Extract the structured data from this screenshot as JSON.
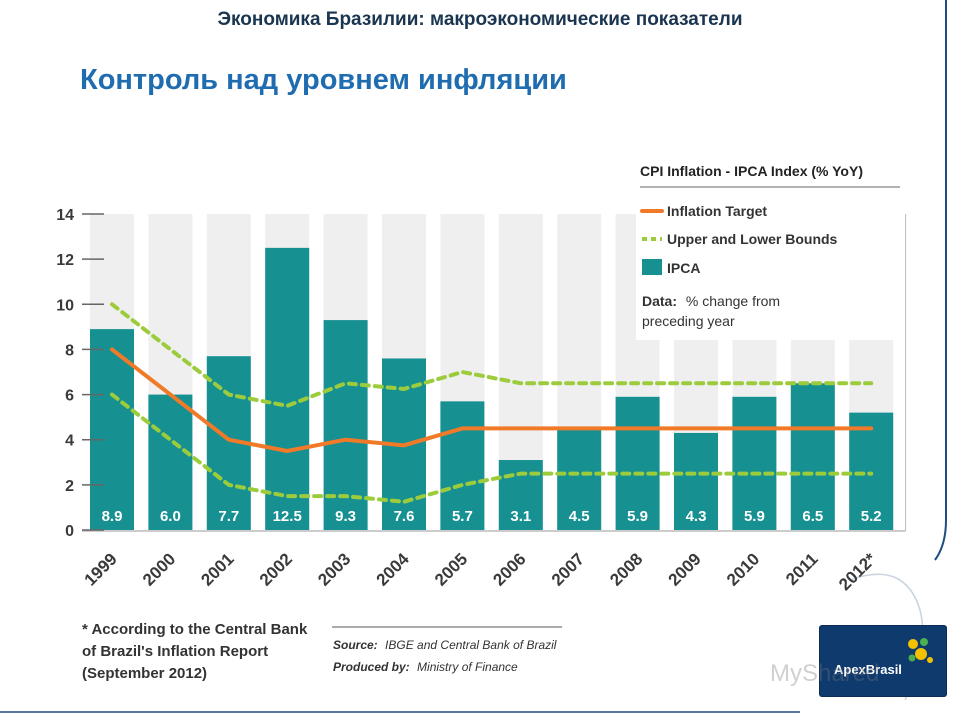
{
  "header": {
    "subtitle": "Экономика Бразилии: макроэкономические показатели",
    "title": "Контроль над уровнем инфляции"
  },
  "chart_data": {
    "type": "bar",
    "title": "CPI Inflation - IPCA Index (% YoY)",
    "categories": [
      "1999",
      "2000",
      "2001",
      "2002",
      "2003",
      "2004",
      "2005",
      "2006",
      "2007",
      "2008",
      "2009",
      "2010",
      "2011",
      "2012*"
    ],
    "series": [
      {
        "name": "IPCA",
        "type": "bar",
        "color": "#179092",
        "values": [
          8.9,
          6.0,
          7.7,
          12.5,
          9.3,
          7.6,
          5.7,
          3.1,
          4.5,
          5.9,
          4.3,
          5.9,
          6.5,
          5.2
        ]
      },
      {
        "name": "Inflation Target",
        "type": "line",
        "color": "#f07a28",
        "values": [
          8.0,
          6.0,
          4.0,
          3.5,
          4.0,
          3.75,
          4.5,
          4.5,
          4.5,
          4.5,
          4.5,
          4.5,
          4.5,
          4.5
        ]
      },
      {
        "name": "Upper and Lower Bounds",
        "type": "line-dashed",
        "color": "#9ccc3c",
        "upper": [
          10.0,
          8.0,
          6.0,
          5.5,
          6.5,
          6.25,
          7.0,
          6.5,
          6.5,
          6.5,
          6.5,
          6.5,
          6.5,
          6.5
        ],
        "lower": [
          6.0,
          4.0,
          2.0,
          1.5,
          1.5,
          1.25,
          2.0,
          2.5,
          2.5,
          2.5,
          2.5,
          2.5,
          2.5,
          2.5
        ]
      }
    ],
    "data_labels": [
      "8.9",
      "6.0",
      "7.7",
      "12.5",
      "9.3",
      "7.6",
      "5.7",
      "3.1",
      "4.5",
      "5.9",
      "4.3",
      "5.9",
      "6.5",
      "5.2"
    ],
    "yticks": [
      "0",
      "2",
      "4",
      "6",
      "8",
      "10",
      "12",
      "14"
    ],
    "ylim": [
      0,
      14
    ],
    "xlabel": "",
    "ylabel": "",
    "legend": {
      "position": "top-right",
      "entries": [
        "Inflation Target",
        "Upper and Lower Bounds",
        "IPCA"
      ],
      "data_note_bold": "Data:",
      "data_note_rest": "% change from",
      "data_note_line2": "preceding year"
    },
    "footnote": [
      "* According to the Central Bank",
      "of Brazil's Inflation Report",
      "(September 2012)"
    ],
    "source": {
      "label": "Source:",
      "text": "IBGE and Central Bank of Brazil"
    },
    "produced_by": {
      "label": "Produced by:",
      "text": "Ministry of Finance"
    },
    "colors": {
      "bar": "#179092",
      "column_bg": "#efefef",
      "target": "#f07a28",
      "bounds": "#9ccc3c"
    }
  },
  "logo": {
    "text": "ApexBrasil"
  },
  "watermark": {
    "text": "MyShared"
  }
}
